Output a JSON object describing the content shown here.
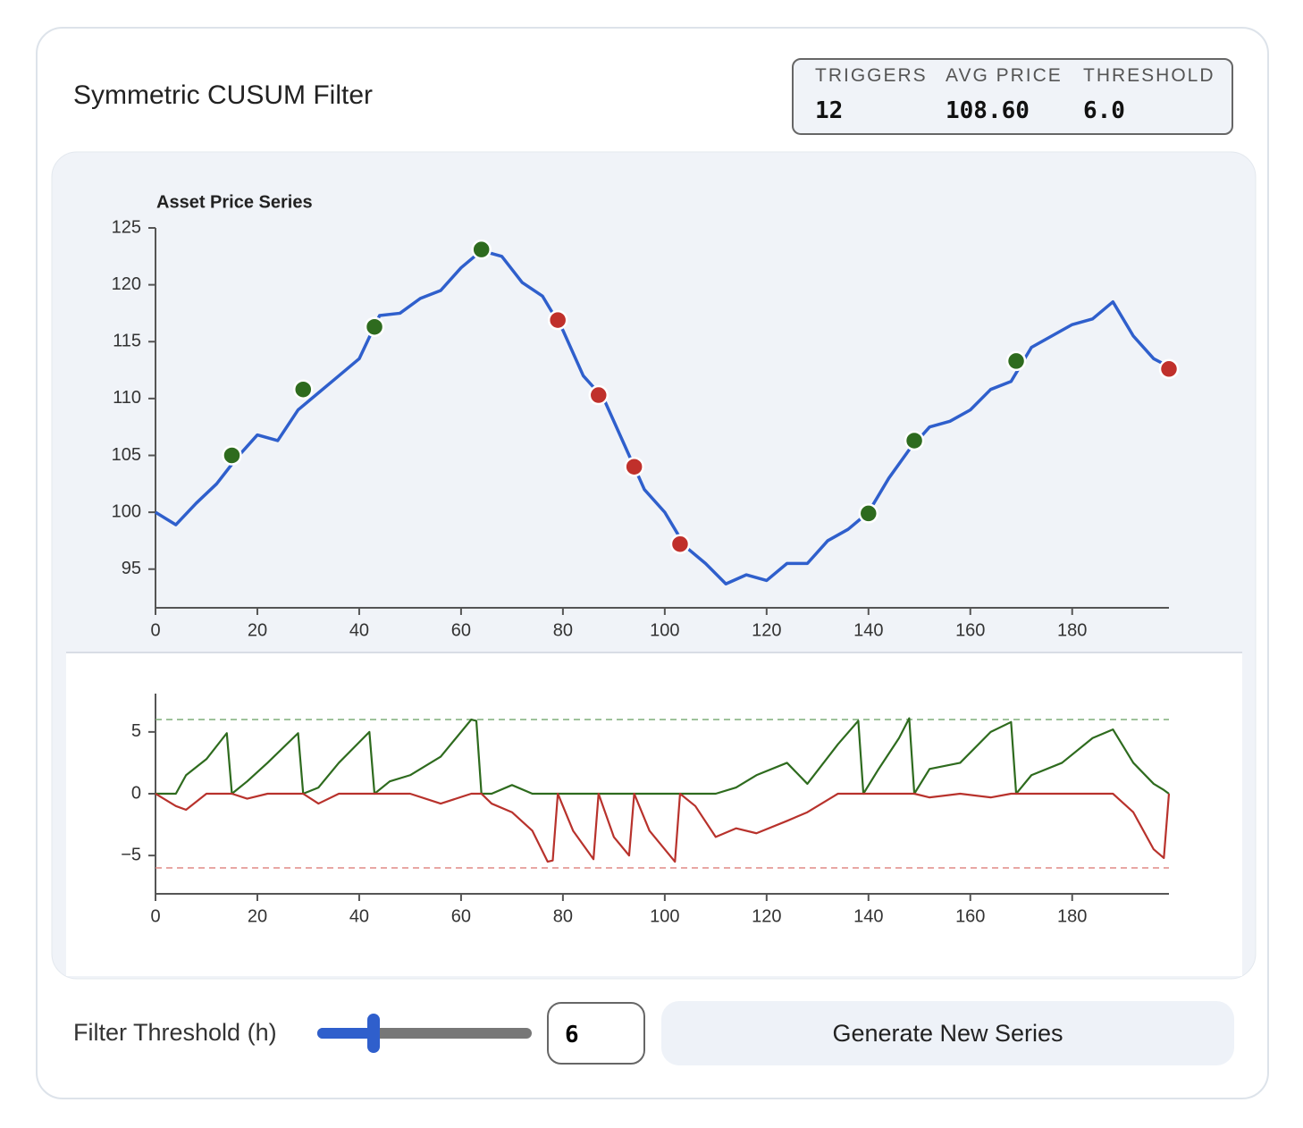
{
  "header": {
    "title": "Symmetric CUSUM Filter"
  },
  "stats": [
    {
      "label": "TRIGGERS",
      "value": "12"
    },
    {
      "label": "AVG PRICE",
      "value": "108.60"
    },
    {
      "label": "THRESHOLD",
      "value": "6.0"
    }
  ],
  "controls": {
    "label": "Filter Threshold (h)",
    "threshold": 6,
    "min": 1,
    "max": 20,
    "button": "Generate New Series"
  },
  "chart_data": [
    {
      "type": "line",
      "title": "Asset Price Series",
      "x": [
        0,
        4,
        8,
        12,
        16,
        20,
        24,
        28,
        32,
        36,
        40,
        44,
        48,
        52,
        56,
        60,
        64,
        68,
        72,
        76,
        80,
        84,
        88,
        92,
        96,
        100,
        104,
        108,
        112,
        116,
        120,
        124,
        128,
        132,
        136,
        140,
        144,
        148,
        152,
        156,
        160,
        164,
        168,
        172,
        176,
        180,
        184,
        188,
        192,
        196,
        199
      ],
      "series": [
        {
          "color": "#2f5fcc",
          "values": [
            100,
            98.9,
            100.8,
            102.5,
            104.8,
            106.8,
            106.3,
            109,
            110.5,
            112,
            113.5,
            117.3,
            117.5,
            118.8,
            119.5,
            121.5,
            123,
            122.5,
            120.2,
            119,
            116,
            112,
            110,
            106,
            102,
            100,
            97,
            95.5,
            93.7,
            94.5,
            94,
            95.5,
            95.5,
            97.5,
            98.5,
            100,
            103,
            105.5,
            107.5,
            108,
            109,
            110.8,
            111.5,
            114.5,
            115.5,
            116.5,
            117,
            118.5,
            115.5,
            113.5,
            112.8
          ]
        }
      ],
      "markers": [
        {
          "color": "#2e6b1e",
          "x": [
            15,
            29,
            43,
            64,
            140,
            149,
            169
          ],
          "values": [
            105,
            110.8,
            116.3,
            123.1,
            99.9,
            106.3,
            113.3
          ]
        },
        {
          "color": "#c0302b",
          "x": [
            79,
            87,
            94,
            103,
            199
          ],
          "values": [
            116.9,
            110.3,
            104,
            97.2,
            112.6
          ]
        }
      ],
      "xlim": [
        0,
        199
      ],
      "ylim": [
        91.6,
        125
      ],
      "xticks": [
        0,
        20,
        40,
        60,
        80,
        100,
        120,
        140,
        160,
        180
      ],
      "yticks": [
        95,
        100,
        105,
        110,
        115,
        120,
        125
      ]
    },
    {
      "type": "line",
      "x": [
        0,
        4,
        6,
        10,
        14,
        15,
        18,
        22,
        28,
        29,
        32,
        36,
        42,
        43,
        46,
        50,
        56,
        62,
        63,
        64,
        66,
        70,
        74,
        77,
        78,
        79,
        82,
        86,
        87,
        90,
        93,
        94,
        97,
        102,
        103,
        106,
        110,
        114,
        118,
        124,
        128,
        134,
        138,
        139,
        142,
        146,
        148,
        149,
        152,
        158,
        164,
        168,
        169,
        172,
        178,
        184,
        188,
        192,
        196,
        198,
        199
      ],
      "series": [
        {
          "color": "#2e6b1e",
          "values": [
            0,
            0,
            1.5,
            2.8,
            4.9,
            0,
            1,
            2.5,
            4.9,
            0,
            0.5,
            2.5,
            5,
            0,
            1,
            1.5,
            3,
            6,
            5.9,
            0,
            0,
            0.7,
            0,
            0,
            0,
            0,
            0,
            0,
            0,
            0,
            0,
            0,
            0,
            0,
            0,
            0,
            0,
            0.5,
            1.5,
            2.5,
            0.8,
            4,
            5.9,
            0,
            2,
            4.5,
            6.1,
            0,
            2,
            2.5,
            5,
            5.8,
            0,
            1.5,
            2.5,
            4.5,
            5.2,
            2.5,
            0.8,
            0.3,
            0
          ]
        },
        {
          "color": "#b8322c",
          "values": [
            0,
            -1,
            -1.3,
            0,
            0,
            0,
            -0.4,
            0,
            0,
            0,
            -0.8,
            0,
            0,
            0,
            0,
            0,
            -0.8,
            0,
            0,
            0,
            -0.8,
            -1.5,
            -3,
            -5.5,
            -5.4,
            0,
            -3,
            -5.3,
            0,
            -3.5,
            -5,
            0,
            -3,
            -5.5,
            0,
            -1,
            -3.5,
            -2.8,
            -3.2,
            -2.2,
            -1.5,
            0,
            0,
            0,
            0,
            0,
            0,
            0,
            -0.3,
            0,
            -0.3,
            0,
            0,
            0,
            0,
            0,
            0,
            -1.5,
            -4.5,
            -5.2,
            0
          ]
        }
      ],
      "reference_lines": [
        {
          "value": 6,
          "color": "#7fae78"
        },
        {
          "value": -6,
          "color": "#e08a86"
        }
      ],
      "xlim": [
        0,
        199
      ],
      "ylim": [
        -8.1,
        8.1
      ],
      "xticks": [
        0,
        20,
        40,
        60,
        80,
        100,
        120,
        140,
        160,
        180
      ],
      "yticks": [
        5,
        0,
        {
          "value": -5,
          "label": "−5"
        }
      ]
    }
  ]
}
